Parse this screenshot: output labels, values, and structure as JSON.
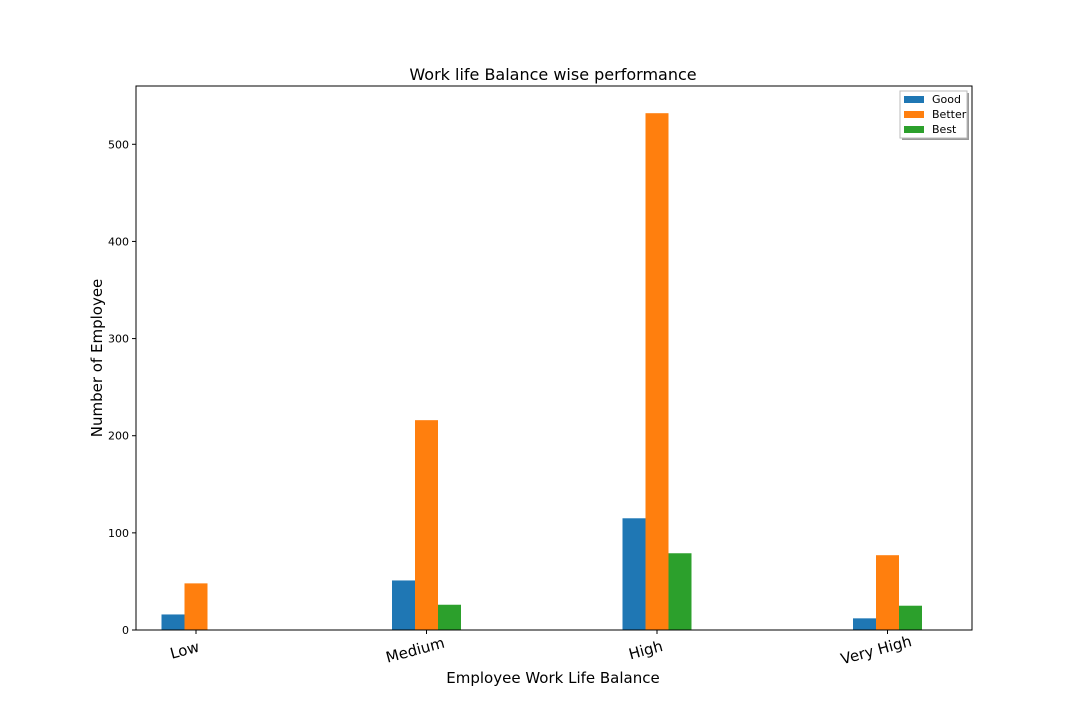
{
  "chart_data": {
    "type": "bar",
    "title": "Work life Balance wise performance",
    "xlabel": "Employee Work Life Balance",
    "ylabel": "Number of Employee",
    "categories": [
      "Low",
      "Medium",
      "High",
      "Very High"
    ],
    "series": [
      {
        "name": "Good",
        "color": "#1f77b4",
        "values": [
          16,
          51,
          115,
          12
        ]
      },
      {
        "name": "Better",
        "color": "#ff7f0e",
        "values": [
          48,
          216,
          532,
          77
        ]
      },
      {
        "name": "Best",
        "color": "#2ca02c",
        "values": [
          null,
          26,
          79,
          25
        ]
      }
    ],
    "ylim": [
      0,
      560
    ],
    "yticks": [
      0,
      100,
      200,
      300,
      400,
      500
    ],
    "grid": false,
    "legend": "top-right"
  }
}
